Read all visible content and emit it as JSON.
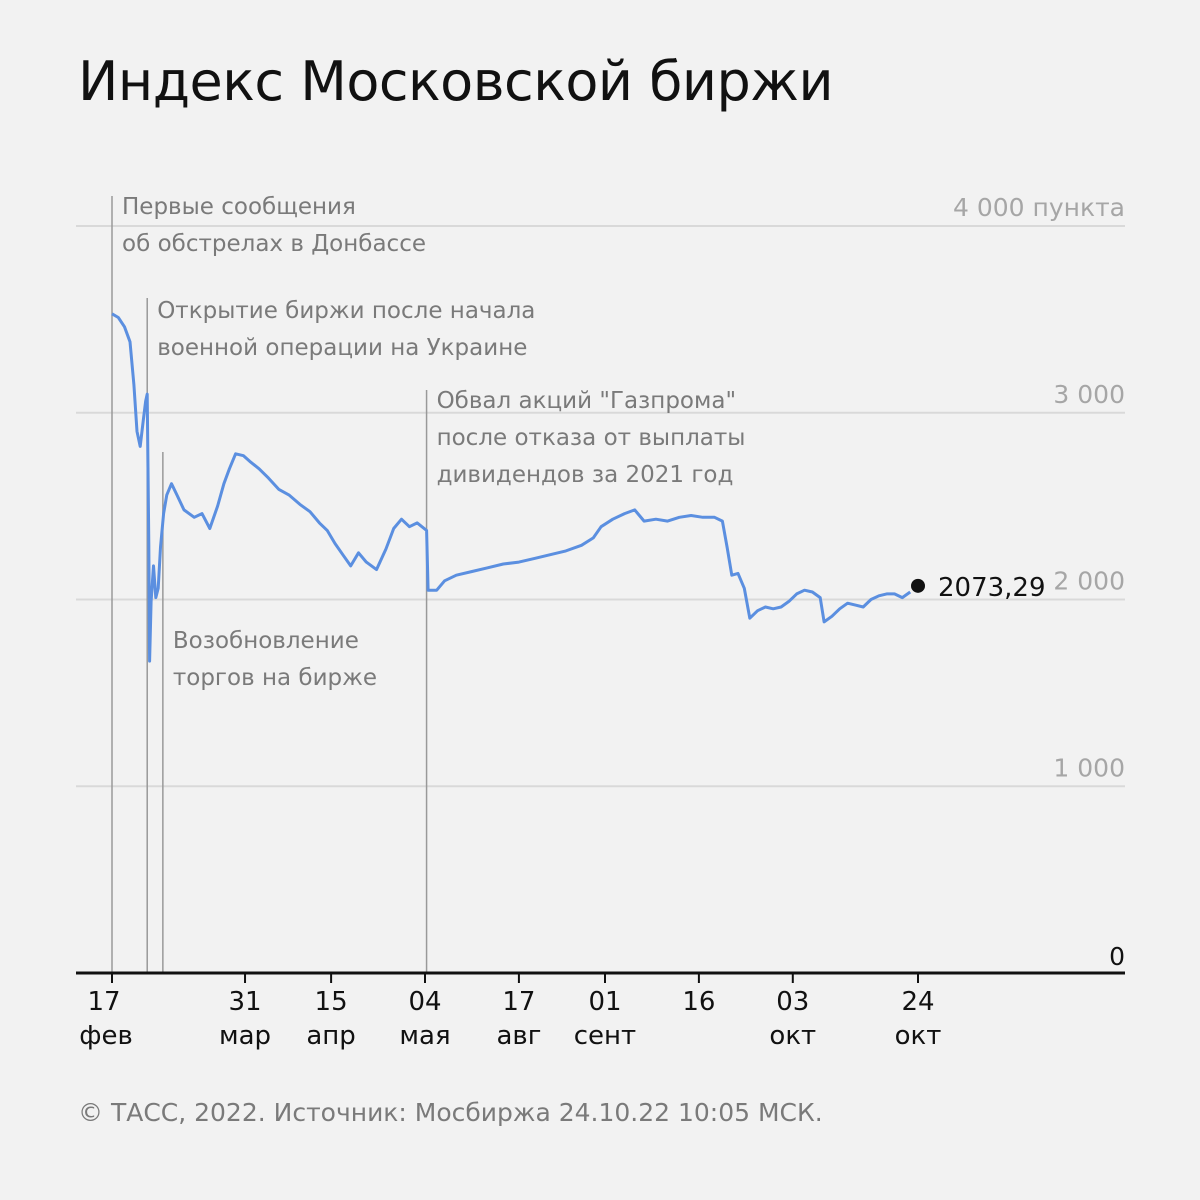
{
  "title": "Индекс Московской биржи",
  "source": "© ТАСС, 2022. Источник: Мосбиржа 24.10.22 10:05 МСК.",
  "colors": {
    "series": "#5b8fe0",
    "grid": "#d9d9d9",
    "annotation": "#7a7a7a",
    "axis": "#111111"
  },
  "chart_data": {
    "type": "line",
    "ylim": [
      0,
      4000
    ],
    "yticks": [
      {
        "value": 0,
        "label": "0"
      },
      {
        "value": 1000,
        "label": "1 000"
      },
      {
        "value": 2000,
        "label": "2 000"
      },
      {
        "value": 3000,
        "label": "3 000"
      },
      {
        "value": 4000,
        "label": "4 000 пункта"
      }
    ],
    "xticks": [
      {
        "x": 1,
        "day": "17",
        "month": "фев"
      },
      {
        "x": 18,
        "day": "31",
        "month": "мар"
      },
      {
        "x": 29,
        "day": "15",
        "month": "апр"
      },
      {
        "x": 41,
        "day": "04",
        "month": "мая"
      },
      {
        "x": 53,
        "day": "17",
        "month": "авг"
      },
      {
        "x": 64,
        "day": "01",
        "month": "сент"
      },
      {
        "x": 76,
        "day": "16",
        "month": ""
      },
      {
        "x": 88,
        "day": "03",
        "month": "окт"
      },
      {
        "x": 104,
        "day": "24",
        "month": "окт"
      }
    ],
    "x_range": [
      1,
      104
    ],
    "series": [
      {
        "values": [
          [
            1,
            3530
          ],
          [
            1.8,
            3510
          ],
          [
            2.6,
            3460
          ],
          [
            3.3,
            3380
          ],
          [
            3.8,
            3150
          ],
          [
            4.2,
            2900
          ],
          [
            4.6,
            2820
          ],
          [
            5.0,
            2960
          ],
          [
            5.3,
            3060
          ],
          [
            5.5,
            3100
          ],
          [
            5.7,
            2300
          ],
          [
            5.8,
            1670
          ],
          [
            6.0,
            1990
          ],
          [
            6.3,
            2180
          ],
          [
            6.6,
            2010
          ],
          [
            6.9,
            2060
          ],
          [
            7.2,
            2280
          ],
          [
            7.6,
            2460
          ],
          [
            8.0,
            2560
          ],
          [
            8.6,
            2620
          ],
          [
            9.3,
            2560
          ],
          [
            10.2,
            2480
          ],
          [
            11.5,
            2440
          ],
          [
            12.5,
            2460
          ],
          [
            13.5,
            2380
          ],
          [
            14.5,
            2500
          ],
          [
            15.3,
            2620
          ],
          [
            16.0,
            2700
          ],
          [
            16.8,
            2780
          ],
          [
            17.8,
            2770
          ],
          [
            18.6,
            2740
          ],
          [
            19.8,
            2700
          ],
          [
            21.0,
            2650
          ],
          [
            22.3,
            2590
          ],
          [
            23.6,
            2560
          ],
          [
            25.0,
            2510
          ],
          [
            26.3,
            2470
          ],
          [
            27.5,
            2410
          ],
          [
            28.5,
            2370
          ],
          [
            29.5,
            2300
          ],
          [
            30.5,
            2240
          ],
          [
            31.5,
            2180
          ],
          [
            32.5,
            2250
          ],
          [
            33.5,
            2200
          ],
          [
            34.8,
            2160
          ],
          [
            36.0,
            2270
          ],
          [
            37.0,
            2380
          ],
          [
            38.0,
            2430
          ],
          [
            39.0,
            2390
          ],
          [
            40.0,
            2410
          ],
          [
            41.2,
            2370
          ],
          [
            41.4,
            2050
          ],
          [
            42.5,
            2050
          ],
          [
            43.5,
            2100
          ],
          [
            45.0,
            2130
          ],
          [
            47.0,
            2150
          ],
          [
            49.0,
            2170
          ],
          [
            51.0,
            2190
          ],
          [
            53.0,
            2200
          ],
          [
            55.0,
            2220
          ],
          [
            57.0,
            2240
          ],
          [
            59.0,
            2260
          ],
          [
            61.0,
            2290
          ],
          [
            62.5,
            2330
          ],
          [
            63.5,
            2390
          ],
          [
            65.0,
            2430
          ],
          [
            66.5,
            2460
          ],
          [
            67.8,
            2480
          ],
          [
            69.0,
            2420
          ],
          [
            70.5,
            2430
          ],
          [
            72.0,
            2420
          ],
          [
            73.5,
            2440
          ],
          [
            75.0,
            2450
          ],
          [
            76.5,
            2440
          ],
          [
            78.0,
            2440
          ],
          [
            79.0,
            2420
          ],
          [
            79.6,
            2280
          ],
          [
            80.2,
            2130
          ],
          [
            81.0,
            2140
          ],
          [
            81.8,
            2060
          ],
          [
            82.5,
            1900
          ],
          [
            83.5,
            1940
          ],
          [
            84.5,
            1960
          ],
          [
            85.5,
            1950
          ],
          [
            86.5,
            1960
          ],
          [
            87.5,
            1990
          ],
          [
            88.5,
            2030
          ],
          [
            89.5,
            2050
          ],
          [
            90.5,
            2040
          ],
          [
            91.5,
            2010
          ],
          [
            92.0,
            1880
          ],
          [
            93.0,
            1910
          ],
          [
            94.0,
            1950
          ],
          [
            95.0,
            1980
          ],
          [
            96.0,
            1970
          ],
          [
            97.0,
            1960
          ],
          [
            98.0,
            2000
          ],
          [
            99.0,
            2020
          ],
          [
            100.0,
            2030
          ],
          [
            101.0,
            2030
          ],
          [
            102.0,
            2010
          ],
          [
            103.0,
            2040
          ]
        ]
      }
    ],
    "last_point": {
      "x": 104,
      "value": 2073.29,
      "label": "2073,29"
    },
    "annotations": [
      {
        "x": 1,
        "lines": [
          "Первые сообщения",
          "об обстрелах в Донбассе"
        ]
      },
      {
        "x": 5.5,
        "lines": [
          "Открытие биржи после начала",
          "военной операции на Украине"
        ]
      },
      {
        "x": 7.5,
        "lines": [
          "Возобновление",
          "торгов на бирже"
        ]
      },
      {
        "x": 41.2,
        "lines": [
          "Обвал акций \"Газпрома\"",
          "после отказа от выплаты",
          "дивидендов за 2021 год"
        ]
      }
    ]
  }
}
